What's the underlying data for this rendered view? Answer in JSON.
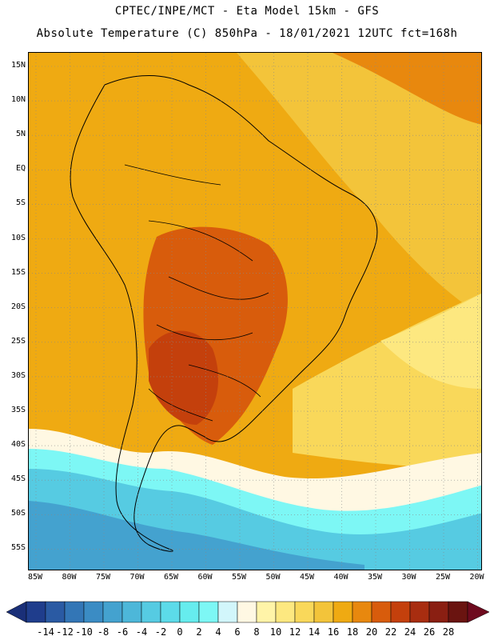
{
  "header": {
    "line1": "CPTEC/INPE/MCT -  Eta Model 15km - GFS",
    "line2": "Absolute Temperature (C) 850hPa - 18/01/2021 12UTC fct=168h"
  },
  "axes": {
    "lat_labels": [
      "15N",
      "10N",
      "5N",
      "EQ",
      "5S",
      "10S",
      "15S",
      "20S",
      "25S",
      "30S",
      "35S",
      "40S",
      "45S",
      "50S",
      "55S"
    ],
    "lon_labels": [
      "85W",
      "80W",
      "75W",
      "70W",
      "65W",
      "60W",
      "55W",
      "50W",
      "45W",
      "40W",
      "35W",
      "30W",
      "25W",
      "20W"
    ]
  },
  "colorbar": {
    "labels": [
      "-14",
      "-12",
      "-10",
      "-8",
      "-6",
      "-4",
      "-2",
      "0",
      "2",
      "4",
      "6",
      "8",
      "10",
      "12",
      "14",
      "16",
      "18",
      "20",
      "22",
      "24",
      "26",
      "28"
    ],
    "colors": [
      "#1f3d8c",
      "#2a5aa3",
      "#3376b6",
      "#3b8cc4",
      "#44a2cf",
      "#4db7d9",
      "#56cbe2",
      "#5cdbe9",
      "#66ecee",
      "#7df7f5",
      "#d2f6fb",
      "#fff8e3",
      "#fff4a8",
      "#fde880",
      "#f9d85a",
      "#f3c43a",
      "#efaa12",
      "#e8880e",
      "#d85c0c",
      "#c4400c",
      "#a82d10",
      "#8a1f12",
      "#6a1410"
    ],
    "under_color": "#1a2f78",
    "over_color": "#6e0a1e"
  },
  "map": {
    "grid": "dotted",
    "background_color": "#efb428",
    "cold_color": "#5cd4e6",
    "cool_color": "#ffffff"
  }
}
